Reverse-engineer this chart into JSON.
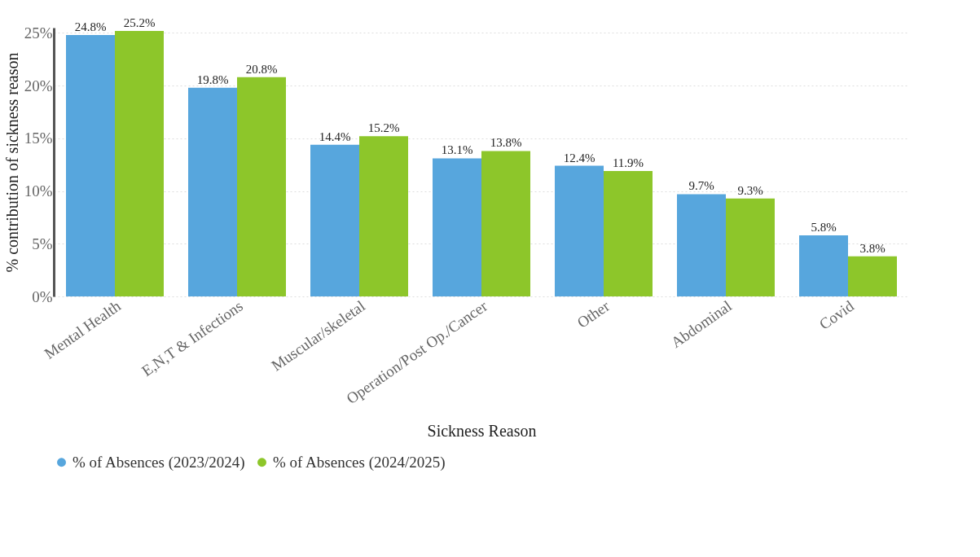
{
  "chart_data": {
    "type": "bar",
    "xlabel": "Sickness Reason",
    "ylabel": "% contribution of sickness reason",
    "categories": [
      "Mental Health",
      "E,N,T & Infections",
      "Muscular/skeletal",
      "Operation/Post Op./Cancer",
      "Other",
      "Abdominal",
      "Covid"
    ],
    "series": [
      {
        "name": "% of Absences (2023/2024)",
        "color": "#57a6dd",
        "values": [
          24.8,
          19.8,
          14.4,
          13.1,
          12.4,
          9.7,
          5.8
        ],
        "value_labels": [
          "24.8%",
          "19.8%",
          "14.4%",
          "13.1%",
          "12.4%",
          "9.7%",
          "5.8%"
        ]
      },
      {
        "name": "% of Absences (2024/2025)",
        "color": "#8dc62a",
        "values": [
          25.2,
          20.8,
          15.2,
          13.8,
          11.9,
          9.3,
          3.8
        ],
        "value_labels": [
          "25.2%",
          "20.8%",
          "15.2%",
          "13.8%",
          "11.9%",
          "9.3%",
          "3.8%"
        ]
      }
    ],
    "ylim": [
      0,
      25.5
    ],
    "yticks": [
      {
        "value": 0,
        "label": "0%"
      },
      {
        "value": 5,
        "label": "5%"
      },
      {
        "value": 10,
        "label": "10%"
      },
      {
        "value": 15,
        "label": "15%"
      },
      {
        "value": 20,
        "label": "20%"
      },
      {
        "value": 25,
        "label": "25%"
      }
    ],
    "grid": "y",
    "legend": "bottom"
  }
}
